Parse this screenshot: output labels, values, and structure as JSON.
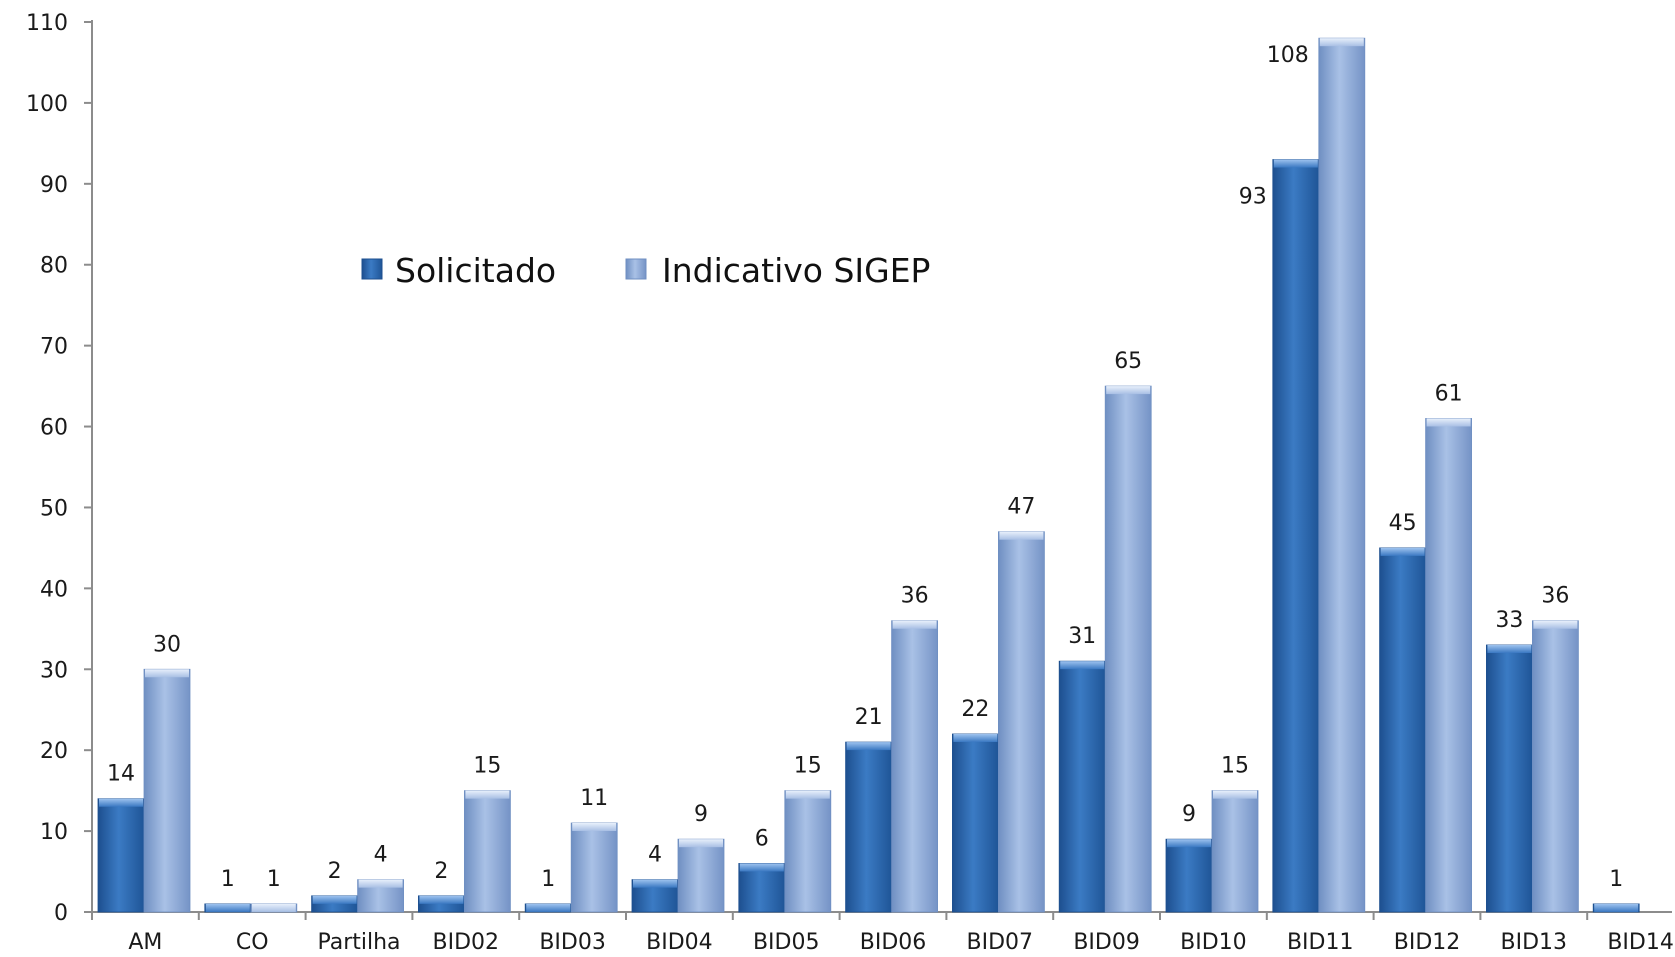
{
  "chart_data": {
    "type": "bar",
    "categories": [
      "AM",
      "CO",
      "Partilha",
      "BID02",
      "BID03",
      "BID04",
      "BID05",
      "BID06",
      "BID07",
      "BID09",
      "BID10",
      "BID11",
      "BID12",
      "BID13",
      "BID14"
    ],
    "series": [
      {
        "name": "Solicitado",
        "color": "#2f6db5",
        "values": [
          14,
          1,
          2,
          2,
          1,
          4,
          6,
          21,
          22,
          31,
          9,
          93,
          45,
          33,
          1
        ],
        "labels": [
          "14",
          "1",
          "2",
          "2",
          "1",
          "4",
          "6",
          "21",
          "22",
          "31",
          "9",
          "93",
          "45",
          "33",
          "1"
        ]
      },
      {
        "name": "Indicativo SIGEP",
        "color": "#8aa9d8",
        "values": [
          30,
          1,
          4,
          15,
          11,
          9,
          15,
          36,
          47,
          65,
          15,
          108,
          61,
          36,
          null
        ],
        "labels": [
          "30",
          "1",
          "4",
          "15",
          "11",
          "9",
          "15",
          "36",
          "47",
          "65",
          "15",
          "108",
          "61",
          "36",
          ""
        ]
      }
    ],
    "ylim": [
      0,
      110
    ],
    "yticks": [
      "0",
      "10",
      "20",
      "30",
      "40",
      "50",
      "60",
      "70",
      "80",
      "90",
      "100",
      "110"
    ],
    "grid": false,
    "legend_position": "upper-left-inside"
  }
}
